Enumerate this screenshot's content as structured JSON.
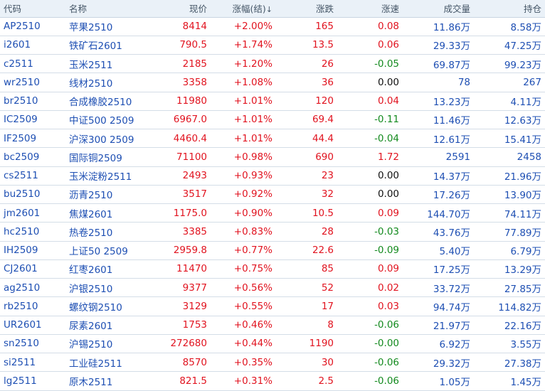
{
  "headers": {
    "code": "代码",
    "name": "名称",
    "price": "现价",
    "change_pct": "涨幅(结)",
    "change_pct_arrow": "↓",
    "change": "涨跌",
    "speed": "涨速",
    "volume": "成交量",
    "open_interest": "持仓"
  },
  "rows": [
    {
      "code": "AP2510",
      "name": "苹果2510",
      "price": "8414",
      "pct": "+2.00%",
      "chg": "165",
      "speed": "0.08",
      "speed_dir": "up",
      "vol": "11.86万",
      "oi": "8.58万"
    },
    {
      "code": "i2601",
      "name": "铁矿石2601",
      "price": "790.5",
      "pct": "+1.74%",
      "chg": "13.5",
      "speed": "0.06",
      "speed_dir": "up",
      "vol": "29.33万",
      "oi": "47.25万"
    },
    {
      "code": "c2511",
      "name": "玉米2511",
      "price": "2185",
      "pct": "+1.20%",
      "chg": "26",
      "speed": "-0.05",
      "speed_dir": "down",
      "vol": "69.87万",
      "oi": "99.23万"
    },
    {
      "code": "wr2510",
      "name": "线材2510",
      "price": "3358",
      "pct": "+1.08%",
      "chg": "36",
      "speed": "0.00",
      "speed_dir": "flat",
      "vol": "78",
      "oi": "267"
    },
    {
      "code": "br2510",
      "name": "合成橡胶2510",
      "price": "11980",
      "pct": "+1.01%",
      "chg": "120",
      "speed": "0.04",
      "speed_dir": "up",
      "vol": "13.23万",
      "oi": "4.11万"
    },
    {
      "code": "IC2509",
      "name": "中证500 2509",
      "price": "6967.0",
      "pct": "+1.01%",
      "chg": "69.4",
      "speed": "-0.11",
      "speed_dir": "down",
      "vol": "11.46万",
      "oi": "12.63万"
    },
    {
      "code": "IF2509",
      "name": "沪深300 2509",
      "price": "4460.4",
      "pct": "+1.01%",
      "chg": "44.4",
      "speed": "-0.04",
      "speed_dir": "down",
      "vol": "12.61万",
      "oi": "15.41万"
    },
    {
      "code": "bc2509",
      "name": "国际铜2509",
      "price": "71100",
      "pct": "+0.98%",
      "chg": "690",
      "speed": "1.72",
      "speed_dir": "up",
      "vol": "2591",
      "oi": "2458"
    },
    {
      "code": "cs2511",
      "name": "玉米淀粉2511",
      "price": "2493",
      "pct": "+0.93%",
      "chg": "23",
      "speed": "0.00",
      "speed_dir": "flat",
      "vol": "14.37万",
      "oi": "21.96万"
    },
    {
      "code": "bu2510",
      "name": "沥青2510",
      "price": "3517",
      "pct": "+0.92%",
      "chg": "32",
      "speed": "0.00",
      "speed_dir": "flat",
      "vol": "17.26万",
      "oi": "13.90万"
    },
    {
      "code": "jm2601",
      "name": "焦煤2601",
      "price": "1175.0",
      "pct": "+0.90%",
      "chg": "10.5",
      "speed": "0.09",
      "speed_dir": "up",
      "vol": "144.70万",
      "oi": "74.11万"
    },
    {
      "code": "hc2510",
      "name": "热卷2510",
      "price": "3385",
      "pct": "+0.83%",
      "chg": "28",
      "speed": "-0.03",
      "speed_dir": "down",
      "vol": "43.76万",
      "oi": "77.89万"
    },
    {
      "code": "IH2509",
      "name": "上证50 2509",
      "price": "2959.8",
      "pct": "+0.77%",
      "chg": "22.6",
      "speed": "-0.09",
      "speed_dir": "down",
      "vol": "5.40万",
      "oi": "6.79万"
    },
    {
      "code": "CJ2601",
      "name": "红枣2601",
      "price": "11470",
      "pct": "+0.75%",
      "chg": "85",
      "speed": "0.09",
      "speed_dir": "up",
      "vol": "17.25万",
      "oi": "13.29万"
    },
    {
      "code": "ag2510",
      "name": "沪银2510",
      "price": "9377",
      "pct": "+0.56%",
      "chg": "52",
      "speed": "0.02",
      "speed_dir": "up",
      "vol": "33.72万",
      "oi": "27.85万"
    },
    {
      "code": "rb2510",
      "name": "螺纹钢2510",
      "price": "3129",
      "pct": "+0.55%",
      "chg": "17",
      "speed": "0.03",
      "speed_dir": "up",
      "vol": "94.74万",
      "oi": "114.82万"
    },
    {
      "code": "UR2601",
      "name": "尿素2601",
      "price": "1753",
      "pct": "+0.46%",
      "chg": "8",
      "speed": "-0.06",
      "speed_dir": "down",
      "vol": "21.97万",
      "oi": "22.16万"
    },
    {
      "code": "sn2510",
      "name": "沪锡2510",
      "price": "272680",
      "pct": "+0.44%",
      "chg": "1190",
      "speed": "-0.00",
      "speed_dir": "down",
      "vol": "6.92万",
      "oi": "3.55万"
    },
    {
      "code": "si2511",
      "name": "工业硅2511",
      "price": "8570",
      "pct": "+0.35%",
      "chg": "30",
      "speed": "-0.06",
      "speed_dir": "down",
      "vol": "29.32万",
      "oi": "27.38万"
    },
    {
      "code": "lg2511",
      "name": "原木2511",
      "price": "821.5",
      "pct": "+0.31%",
      "chg": "2.5",
      "speed": "-0.06",
      "speed_dir": "down",
      "vol": "1.05万",
      "oi": "1.45万"
    }
  ],
  "colors": {
    "up": "#e1131f",
    "down": "#138a1e",
    "flat": "#111111",
    "link": "#1e4fb3",
    "header_bg": "#eaf1f8"
  }
}
